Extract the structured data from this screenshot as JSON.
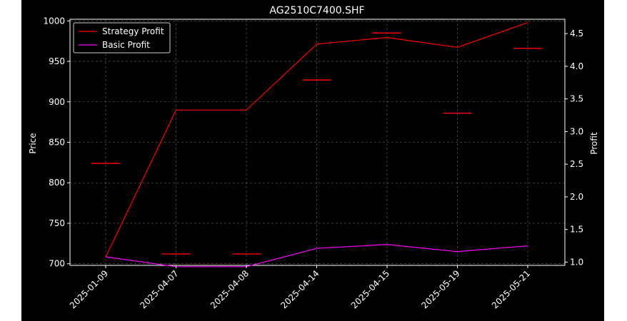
{
  "chart_data": {
    "type": "line",
    "title": "AG2510C7400.SHF",
    "xlabel": "",
    "ylabel": "Price",
    "ylabel_right": "Profit",
    "categories": [
      "2025-01-09",
      "2025-04-07",
      "2025-04-08",
      "2025-04-14",
      "2025-04-15",
      "2025-05-19",
      "2025-05-21"
    ],
    "price_ticks": [
      700,
      750,
      800,
      850,
      900,
      950,
      1000
    ],
    "profit_ticks": [
      "1.0",
      "1.5",
      "2.0",
      "2.5",
      "3.0",
      "3.5",
      "4.0",
      "4.5"
    ],
    "ylim_left": [
      698,
      1002
    ],
    "ylim_right": [
      0.95,
      4.72
    ],
    "price_marks": [
      824,
      712,
      712,
      927,
      985,
      886,
      966
    ],
    "series": [
      {
        "name": "Strategy Profit",
        "axis": "right",
        "color": "#ff0000",
        "values": [
          1.08,
          3.33,
          3.33,
          4.34,
          4.44,
          4.29,
          4.67
        ]
      },
      {
        "name": "Basic Profit",
        "axis": "right",
        "color": "#ff00ff",
        "values": [
          1.08,
          0.93,
          0.93,
          1.21,
          1.27,
          1.16,
          1.25
        ]
      }
    ],
    "price_mark_color": "#ff0000",
    "grid": true,
    "legend_position": "upper-left",
    "background": "#000000",
    "foreground": "#ffffff"
  }
}
